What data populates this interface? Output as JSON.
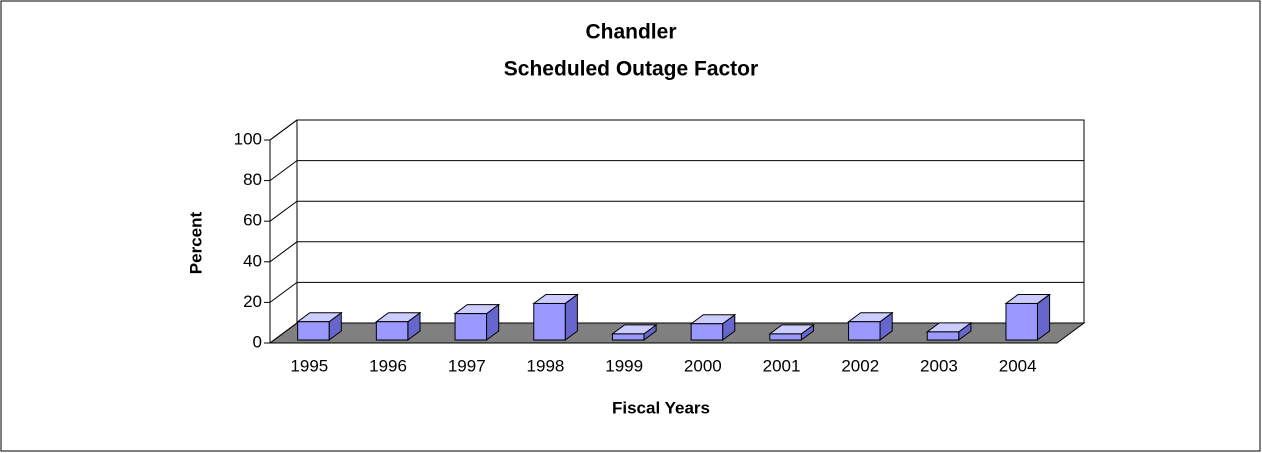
{
  "chart_data": {
    "type": "bar3d",
    "title": "Chandler",
    "subtitle": "Scheduled Outage Factor",
    "x_label": "Fiscal Years",
    "y_label": "Percent",
    "categories": [
      "1995",
      "1996",
      "1997",
      "1998",
      "1999",
      "2000",
      "2001",
      "2002",
      "2003",
      "2004"
    ],
    "values": [
      9,
      9,
      13,
      18,
      3,
      8,
      3,
      9,
      4,
      18
    ],
    "color": "#9999ff",
    "floor_color": "#808080",
    "ylim": [
      0,
      100
    ],
    "yticks": [
      0,
      20,
      40,
      60,
      80,
      100
    ],
    "grid": true
  }
}
